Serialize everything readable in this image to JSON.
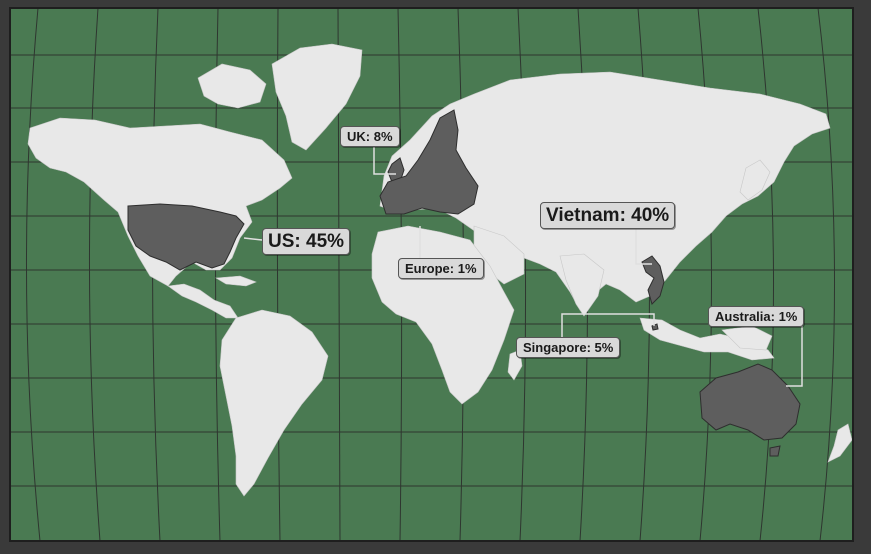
{
  "map": {
    "colors": {
      "frame": "#3a3a3a",
      "ocean": "#4a7a52",
      "grid": "#2a2a2a",
      "land": "#e8e8e8",
      "highlight": "#5e5e5e",
      "callout_bg": "#d9d9d9",
      "leader": "#e0e0e0"
    },
    "highlighted_regions": [
      "US",
      "UK",
      "Europe",
      "Vietnam",
      "Singapore",
      "Australia"
    ],
    "callouts": {
      "us": "US: 45%",
      "uk": "UK: 8%",
      "europe": "Europe: 1%",
      "vietnam": "Vietnam: 40%",
      "singapore": "Singapore: 5%",
      "australia": "Australia: 1%"
    },
    "shares_percent": {
      "US": 45,
      "UK": 8,
      "Europe": 1,
      "Vietnam": 40,
      "Singapore": 5,
      "Australia": 1
    }
  }
}
